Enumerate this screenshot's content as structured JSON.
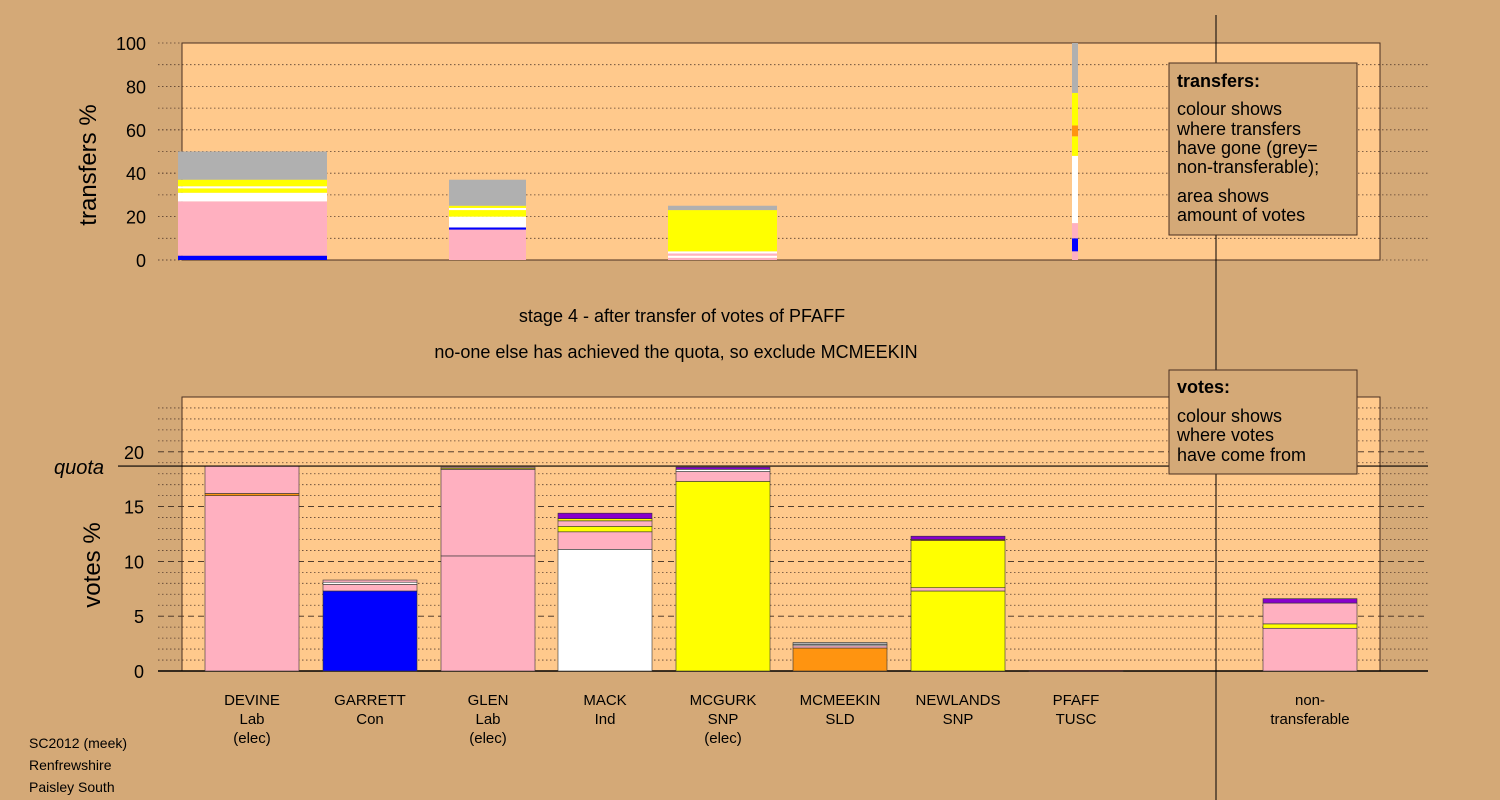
{
  "colors": {
    "background": "#d4a977",
    "plot_bg": "#ffc98c",
    "Lab": "#ffb0c0",
    "Con": "#0000ff",
    "Ind": "#ffffff",
    "SNP": "#ffff00",
    "SLD": "#ff9410",
    "TUSC": "#8b1a1a",
    "other": "#8800cc",
    "nontrans": "#b0b0b0",
    "quota_line": "#000000"
  },
  "caption": {
    "line1": "stage 4 - after transfer of votes of PFAFF",
    "line2": "no-one else has achieved the quota, so exclude MCMEEKIN"
  },
  "footer": [
    "SC2012 (meek)",
    "Renfrewshire",
    "Paisley South"
  ],
  "legend_transfers": {
    "title": "transfers:",
    "lines": [
      "colour shows",
      "where transfers",
      "have gone (grey=",
      "non-transferable);",
      "area shows",
      "amount of votes"
    ]
  },
  "legend_votes": {
    "title": "votes:",
    "lines": [
      "colour shows",
      "where votes",
      "have come from"
    ]
  },
  "chart_data": [
    {
      "type": "bar",
      "title": "",
      "ylabel": "transfers %",
      "ylim": [
        0,
        100
      ],
      "yticks": [
        0,
        20,
        40,
        60,
        80,
        100
      ],
      "grid": "dotted",
      "legend": "top-right",
      "columns": [
        {
          "name": "DEVINE",
          "segments": [
            {
              "p": "Con",
              "v": 2
            },
            {
              "p": "Lab",
              "v": 25
            },
            {
              "p": "Ind",
              "v": 4
            },
            {
              "p": "SNP",
              "v": 2
            },
            {
              "p": "Ind",
              "v": 1
            },
            {
              "p": "SNP",
              "v": 3
            },
            {
              "p": "nontrans",
              "v": 13
            }
          ]
        },
        {
          "name": "GLEN",
          "segments": [
            {
              "p": "Lab",
              "v": 14
            },
            {
              "p": "Con",
              "v": 1
            },
            {
              "p": "Ind",
              "v": 5
            },
            {
              "p": "SNP",
              "v": 3
            },
            {
              "p": "Ind",
              "v": 1
            },
            {
              "p": "SNP",
              "v": 1
            },
            {
              "p": "nontrans",
              "v": 12
            }
          ]
        },
        {
          "name": "MCGURK",
          "segments": [
            {
              "p": "Lab",
              "v": 1
            },
            {
              "p": "Ind",
              "v": 1
            },
            {
              "p": "Lab",
              "v": 1
            },
            {
              "p": "Ind",
              "v": 1
            },
            {
              "p": "SNP",
              "v": 19
            },
            {
              "p": "nontrans",
              "v": 2
            }
          ]
        },
        {
          "name": "PFAFF",
          "segments": [
            {
              "p": "Lab",
              "v": 4
            },
            {
              "p": "Con",
              "v": 6
            },
            {
              "p": "Lab",
              "v": 7
            },
            {
              "p": "Ind",
              "v": 31
            },
            {
              "p": "SNP",
              "v": 9
            },
            {
              "p": "SLD",
              "v": 5
            },
            {
              "p": "SNP",
              "v": 15
            },
            {
              "p": "nontrans",
              "v": 23
            }
          ]
        }
      ]
    },
    {
      "type": "bar",
      "title": "",
      "ylabel": "votes %",
      "ylim": [
        0,
        25
      ],
      "yticks": [
        0,
        5,
        10,
        15,
        20
      ],
      "quota": 18.7,
      "quota_label": "quota",
      "grid": "dashed",
      "legend": "top-right",
      "categories": [
        {
          "name": "DEVINE",
          "party": "Lab",
          "status": "(elec)"
        },
        {
          "name": "GARRETT",
          "party": "Con",
          "status": ""
        },
        {
          "name": "GLEN",
          "party": "Lab",
          "status": "(elec)"
        },
        {
          "name": "MACK",
          "party": "Ind",
          "status": ""
        },
        {
          "name": "MCGURK",
          "party": "SNP",
          "status": "(elec)"
        },
        {
          "name": "MCMEEKIN",
          "party": "SLD",
          "status": ""
        },
        {
          "name": "NEWLANDS",
          "party": "SNP",
          "status": ""
        },
        {
          "name": "PFAFF",
          "party": "TUSC",
          "status": ""
        },
        {
          "name": "non-",
          "party": "transferable",
          "status": ""
        }
      ],
      "stacks": [
        [
          {
            "p": "Lab",
            "v": 16.0
          },
          {
            "p": "SLD",
            "v": 0.2
          },
          {
            "p": "Lab",
            "v": 2.5
          }
        ],
        [
          {
            "p": "Con",
            "v": 7.3
          },
          {
            "p": "Lab",
            "v": 0.6
          },
          {
            "p": "Ind",
            "v": 0.2
          },
          {
            "p": "Lab",
            "v": 0.2
          }
        ],
        [
          {
            "p": "Lab",
            "v": 10.5
          },
          {
            "p": "Lab",
            "v": 7.9
          },
          {
            "p": "SNP",
            "v": 0.1
          },
          {
            "p": "Lab",
            "v": 0.1
          }
        ],
        [
          {
            "p": "Ind",
            "v": 11.1
          },
          {
            "p": "Lab",
            "v": 1.6
          },
          {
            "p": "SNP",
            "v": 0.5
          },
          {
            "p": "Lab",
            "v": 0.5
          },
          {
            "p": "SNP",
            "v": 0.2
          },
          {
            "p": "other",
            "v": 0.5
          }
        ],
        [
          {
            "p": "SNP",
            "v": 17.3
          },
          {
            "p": "Lab",
            "v": 0.9
          },
          {
            "p": "Ind",
            "v": 0.2
          },
          {
            "p": "other",
            "v": 0.2
          }
        ],
        [
          {
            "p": "SLD",
            "v": 2.1
          },
          {
            "p": "Lab",
            "v": 0.2
          },
          {
            "p": "Ind",
            "v": 0.1
          },
          {
            "p": "nontrans",
            "v": 0.2
          }
        ],
        [
          {
            "p": "SNP",
            "v": 7.3
          },
          {
            "p": "Lab",
            "v": 0.3
          },
          {
            "p": "SNP",
            "v": 4.3
          },
          {
            "p": "SLD",
            "v": 0.1
          },
          {
            "p": "other",
            "v": 0.3
          }
        ],
        [
          {
            "p": "TUSC",
            "v": 0.05
          }
        ],
        [
          {
            "p": "Lab",
            "v": 3.9
          },
          {
            "p": "SNP",
            "v": 0.4
          },
          {
            "p": "Lab",
            "v": 1.9
          },
          {
            "p": "other",
            "v": 0.4
          }
        ]
      ]
    }
  ]
}
